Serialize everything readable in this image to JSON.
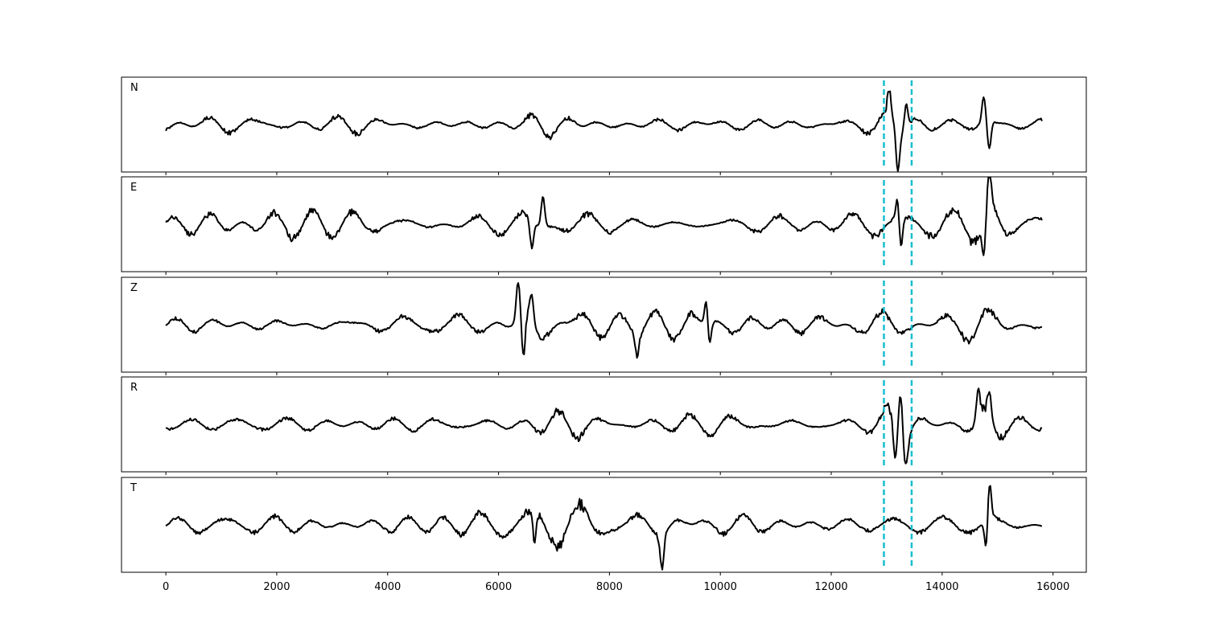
{
  "chart_data": {
    "type": "line",
    "title": "",
    "xlabel": "",
    "ylabel": "",
    "xlim": [
      -800,
      16600
    ],
    "x_ticks": [
      0,
      2000,
      4000,
      6000,
      8000,
      10000,
      12000,
      14000,
      16000
    ],
    "x_tick_labels": [
      "0",
      "2000",
      "4000",
      "6000",
      "8000",
      "10000",
      "12000",
      "14000",
      "16000"
    ],
    "sample_count": 15800,
    "line_color": "#000000",
    "marker_color": "#17becf",
    "markers": [
      12950,
      13450
    ],
    "grid": false,
    "legend": "none",
    "panels": [
      {
        "label": "N",
        "noise_amplitude": 0.16,
        "bursts": [
          {
            "x": 6800,
            "amplitude": 0.28
          },
          {
            "x": 7400,
            "amplitude": 0.24
          },
          {
            "x": 13200,
            "amplitude": 0.55
          },
          {
            "x": 14900,
            "amplitude": 0.42
          }
        ],
        "peaks": [
          {
            "x": 13050,
            "y": 0.45
          },
          {
            "x": 13200,
            "y": -0.9
          },
          {
            "x": 13350,
            "y": 0.55
          },
          {
            "x": 14750,
            "y": 0.55
          },
          {
            "x": 14850,
            "y": -0.6
          }
        ]
      },
      {
        "label": "E",
        "noise_amplitude": 0.28,
        "bursts": [
          {
            "x": 6700,
            "amplitude": 0.45
          },
          {
            "x": 7400,
            "amplitude": 0.4
          },
          {
            "x": 14850,
            "amplitude": 0.55
          }
        ],
        "peaks": [
          {
            "x": 6600,
            "y": -0.6
          },
          {
            "x": 6800,
            "y": 0.65
          },
          {
            "x": 13200,
            "y": 0.55
          },
          {
            "x": 13250,
            "y": -0.75
          },
          {
            "x": 14750,
            "y": -0.75
          },
          {
            "x": 14850,
            "y": 0.85
          }
        ]
      },
      {
        "label": "Z",
        "noise_amplitude": 0.2,
        "bursts": [
          {
            "x": 6500,
            "amplitude": 0.55
          },
          {
            "x": 7500,
            "amplitude": 0.4
          },
          {
            "x": 9500,
            "amplitude": 0.38
          },
          {
            "x": 14800,
            "amplitude": 0.35
          }
        ],
        "peaks": [
          {
            "x": 6350,
            "y": 0.7
          },
          {
            "x": 6450,
            "y": -0.95
          },
          {
            "x": 6600,
            "y": 0.5
          },
          {
            "x": 8500,
            "y": -0.5
          },
          {
            "x": 9750,
            "y": 0.6
          },
          {
            "x": 9800,
            "y": -0.55
          }
        ]
      },
      {
        "label": "R",
        "noise_amplitude": 0.15,
        "bursts": [
          {
            "x": 6800,
            "amplitude": 0.28
          },
          {
            "x": 7400,
            "amplitude": 0.3
          },
          {
            "x": 13200,
            "amplitude": 0.55
          },
          {
            "x": 14800,
            "amplitude": 0.38
          }
        ],
        "peaks": [
          {
            "x": 13150,
            "y": -0.75
          },
          {
            "x": 13250,
            "y": 0.9
          },
          {
            "x": 13350,
            "y": -0.55
          },
          {
            "x": 14650,
            "y": 0.6
          },
          {
            "x": 14850,
            "y": 0.5
          }
        ]
      },
      {
        "label": "T",
        "noise_amplitude": 0.28,
        "bursts": [
          {
            "x": 6600,
            "amplitude": 0.45
          },
          {
            "x": 7400,
            "amplitude": 0.45
          },
          {
            "x": 9000,
            "amplitude": 0.35
          },
          {
            "x": 14850,
            "amplitude": 0.5
          }
        ],
        "peaks": [
          {
            "x": 6650,
            "y": -0.7
          },
          {
            "x": 8950,
            "y": -0.75
          },
          {
            "x": 14800,
            "y": -0.7
          },
          {
            "x": 14850,
            "y": 0.9
          }
        ]
      }
    ]
  }
}
